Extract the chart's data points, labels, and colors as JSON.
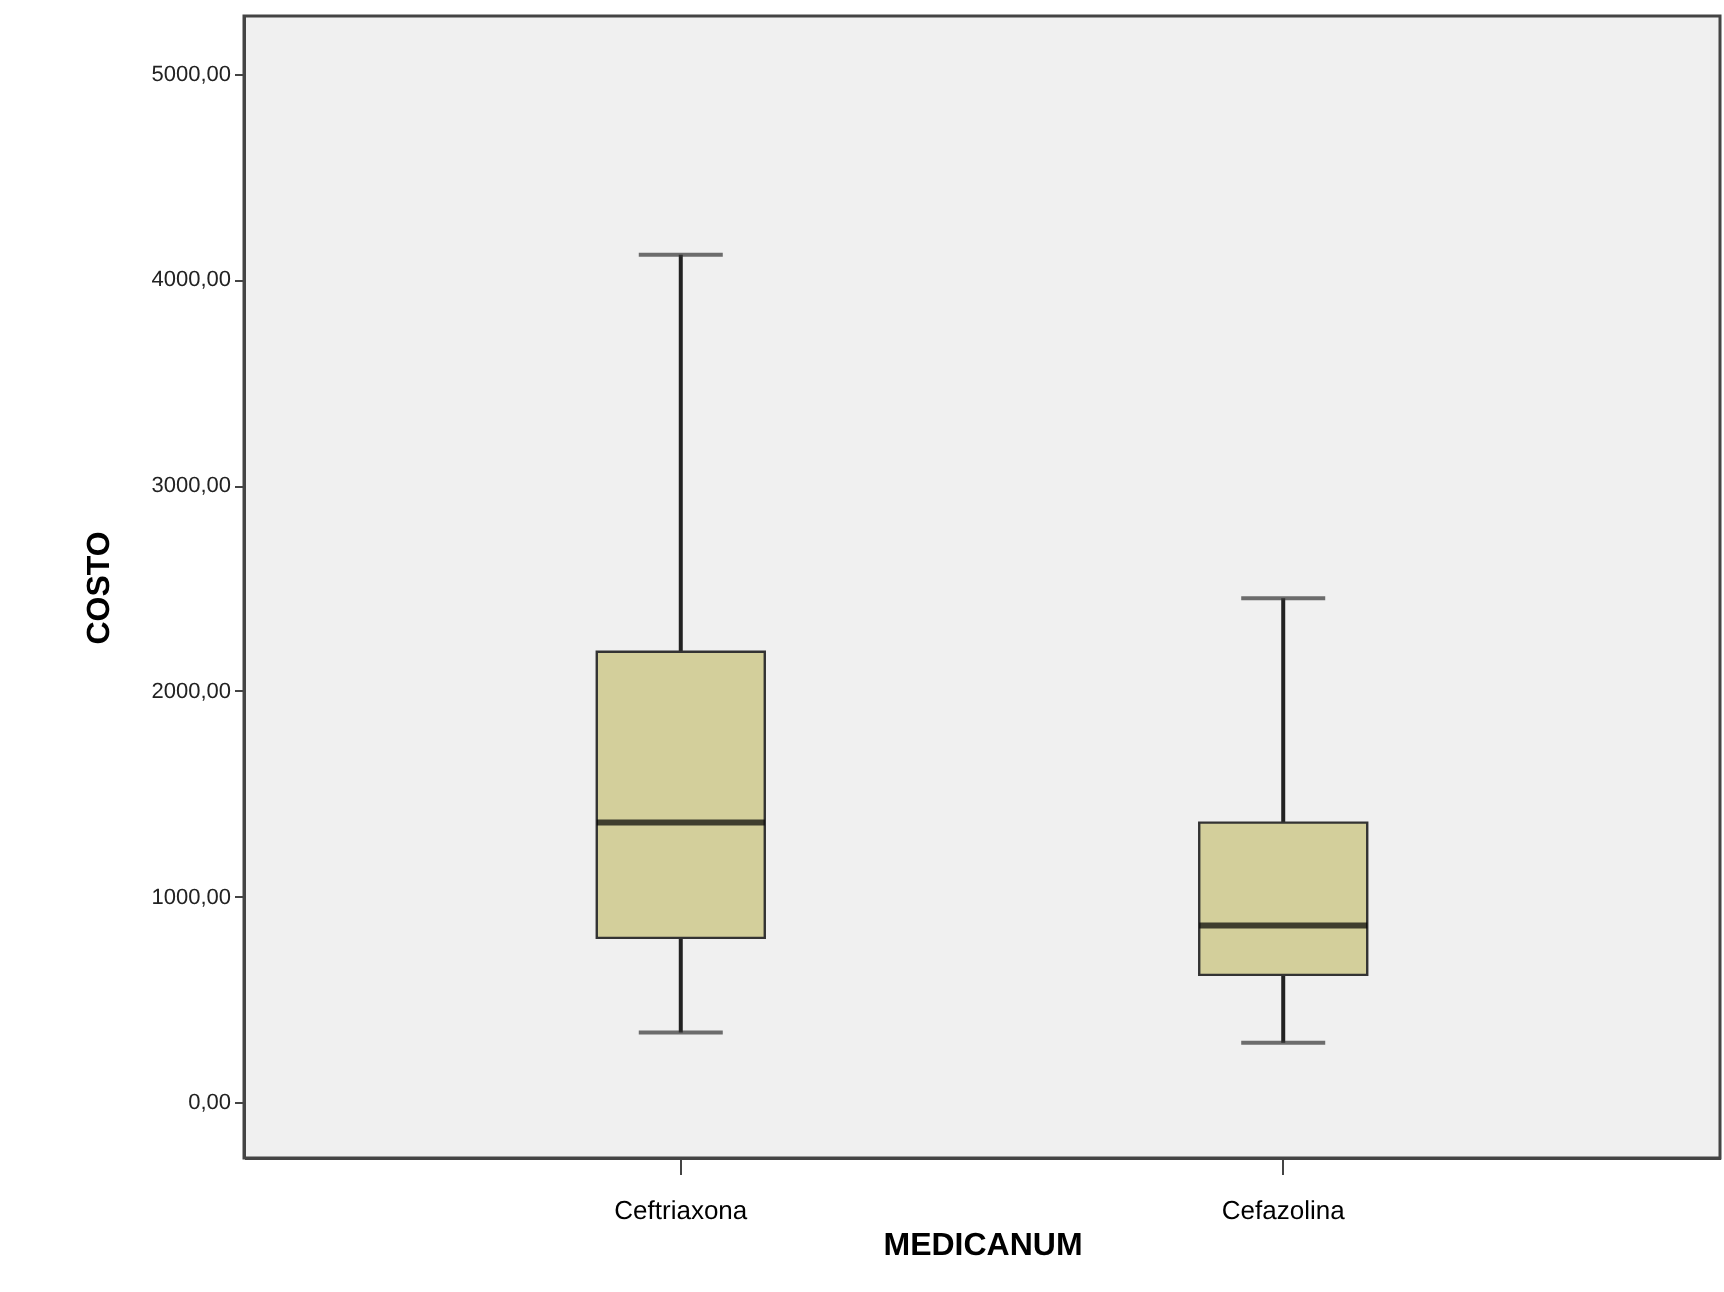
{
  "chart_data": {
    "type": "box",
    "xlabel": "MEDICANUM",
    "ylabel": "COSTO",
    "categories": [
      "Ceftriaxona",
      "Cefazolina"
    ],
    "boxes": [
      {
        "low": 340,
        "q1": 800,
        "median": 1360,
        "q3": 2190,
        "high": 4120
      },
      {
        "low": 290,
        "q1": 620,
        "median": 860,
        "q3": 1360,
        "high": 2450
      }
    ],
    "color": "#d3cf9b",
    "ylim": [
      -270,
      5280
    ],
    "yticks": [
      {
        "value": 0,
        "label": "0,00"
      },
      {
        "value": 1000,
        "label": "1000,00"
      },
      {
        "value": 2000,
        "label": "2000,00"
      },
      {
        "value": 3000,
        "label": "3000,00"
      },
      {
        "value": 4000,
        "label": "4000,00"
      },
      {
        "value": 5000,
        "label": "5000,00"
      }
    ],
    "grid": false
  }
}
